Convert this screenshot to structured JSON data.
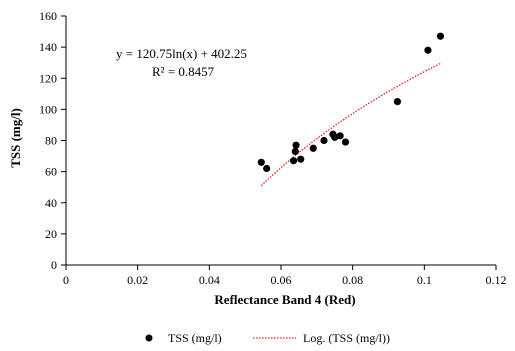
{
  "chart_data": {
    "type": "scatter",
    "xlabel": "Reflectance Band 4 (Red)",
    "ylabel": "TSS (mg/l)",
    "xlim": [
      0,
      0.12
    ],
    "ylim": [
      0,
      160
    ],
    "x_ticks": [
      0,
      0.02,
      0.04,
      0.06,
      0.08,
      0.1,
      0.12
    ],
    "x_tick_labels": [
      "0",
      "0.02",
      "0.04",
      "0.06",
      "0.08",
      "0.1",
      "0.12"
    ],
    "y_ticks": [
      0,
      20,
      40,
      60,
      80,
      100,
      120,
      140,
      160
    ],
    "y_tick_labels": [
      "0",
      "20",
      "40",
      "60",
      "80",
      "100",
      "120",
      "140",
      "160"
    ],
    "grid": false,
    "legend_position": "bottom",
    "series": [
      {
        "name": "TSS (mg/l)",
        "kind": "scatter",
        "color": "#000000",
        "points": [
          {
            "x": 0.0545,
            "y": 66
          },
          {
            "x": 0.056,
            "y": 62
          },
          {
            "x": 0.0635,
            "y": 67
          },
          {
            "x": 0.064,
            "y": 73
          },
          {
            "x": 0.0642,
            "y": 77
          },
          {
            "x": 0.0655,
            "y": 68
          },
          {
            "x": 0.069,
            "y": 75
          },
          {
            "x": 0.072,
            "y": 80
          },
          {
            "x": 0.0745,
            "y": 84
          },
          {
            "x": 0.075,
            "y": 82
          },
          {
            "x": 0.0765,
            "y": 83
          },
          {
            "x": 0.078,
            "y": 79
          },
          {
            "x": 0.0925,
            "y": 105
          },
          {
            "x": 0.101,
            "y": 138
          },
          {
            "x": 0.1045,
            "y": 147
          }
        ]
      },
      {
        "name": "Log. (TSS (mg/l))",
        "kind": "trendline",
        "color": "#e8201e",
        "model": "log",
        "a": 120.75,
        "b": 402.25,
        "x_range": [
          0.0545,
          0.1045
        ]
      }
    ],
    "annotations": {
      "equation": "y = 120.75ln(x)  + 402.25",
      "r_squared": "R² = 0.8457"
    }
  }
}
